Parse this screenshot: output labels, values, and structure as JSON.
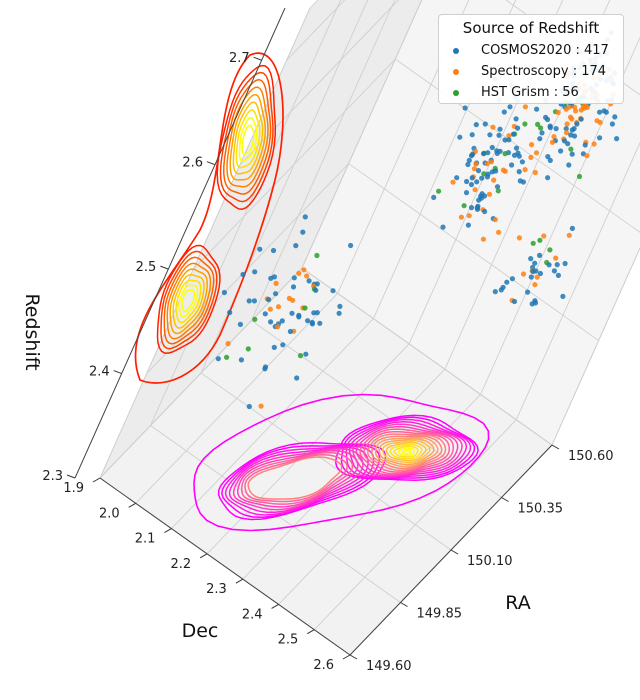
{
  "chart_data": {
    "type": "scatter",
    "projection": "3d",
    "xlabel": "RA",
    "ylabel": "Dec",
    "zlabel": "Redshift",
    "ra_ticks": [
      "149.60",
      "149.85",
      "150.10",
      "150.35",
      "150.60"
    ],
    "dec_ticks": [
      "1.9",
      "2.0",
      "2.1",
      "2.2",
      "2.3",
      "2.4",
      "2.5",
      "2.6"
    ],
    "z_ticks": [
      "2.3",
      "2.4",
      "2.5",
      "2.6",
      "2.7"
    ],
    "xlim": [
      149.6,
      150.6
    ],
    "ylim": [
      1.9,
      2.6
    ],
    "zlim": [
      2.3,
      2.75
    ],
    "legend": {
      "title": "Source of Redshift",
      "placement": "top-right"
    },
    "series": [
      {
        "name": "COSMOS2020 : 417",
        "color": "#1f77b4",
        "count": 417
      },
      {
        "name": "Spectroscopy : 174",
        "color": "#ff7f0e",
        "count": 174
      },
      {
        "name": "HST Grism : 56",
        "color": "#2ca02c",
        "count": 56
      }
    ],
    "projections": [
      {
        "plane": "RA-Dec (floor)",
        "colormap": "spring"
      },
      {
        "plane": "Dec-Redshift (left wall)",
        "colormap": "autumn"
      }
    ]
  }
}
